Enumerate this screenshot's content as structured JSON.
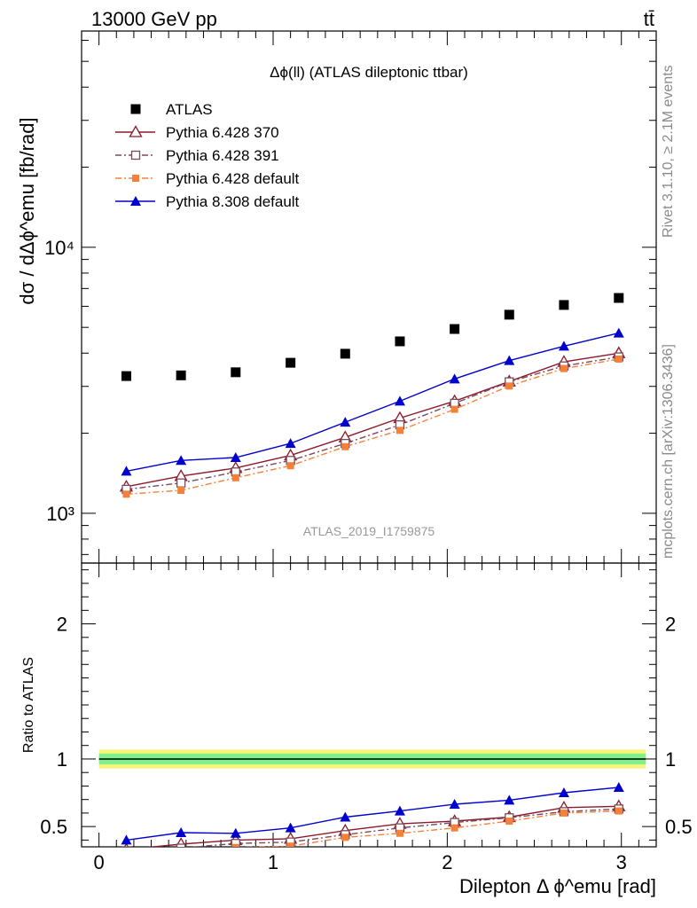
{
  "header": {
    "left": "13000 GeV pp",
    "right": "tt̄"
  },
  "side_labels": {
    "rivet": "Rivet 3.1.10, ≥ 2.1M events",
    "mcplots": "mcplots.cern.ch [arXiv:1306.3436]"
  },
  "chart_data": [
    {
      "type": "scatter",
      "title": "Δϕ(ll) (ATLAS dileptonic ttbar)",
      "watermark": "ATLAS_2019_I1759875",
      "ylabel": "dσ / dΔϕ^emu [fb/rad]",
      "yscale": "log",
      "ylim": [
        650,
        65000
      ],
      "xlim": [
        -0.1,
        3.2
      ],
      "y_ticks": [
        {
          "value": 1000,
          "label": "10³"
        },
        {
          "value": 10000,
          "label": "10⁴"
        }
      ],
      "x": [
        0.157,
        0.471,
        0.785,
        1.1,
        1.414,
        1.728,
        2.042,
        2.356,
        2.67,
        2.985
      ],
      "series": [
        {
          "name": "ATLAS",
          "marker": "square-filled",
          "color": "#000000",
          "line": "none",
          "values": [
            3280,
            3300,
            3390,
            3680,
            3980,
            4430,
            4930,
            5580,
            6070,
            6450
          ]
        },
        {
          "name": "Pythia 6.428 370",
          "marker": "triangle-open",
          "color": "#8b1a2b",
          "line": "solid",
          "values": [
            1260,
            1380,
            1480,
            1650,
            1930,
            2280,
            2640,
            3130,
            3710,
            4000
          ]
        },
        {
          "name": "Pythia 6.428 391",
          "marker": "square-open",
          "color": "#7a4a5a",
          "line": "dashdot",
          "values": [
            1230,
            1300,
            1430,
            1580,
            1830,
            2150,
            2590,
            3120,
            3580,
            3870
          ]
        },
        {
          "name": "Pythia 6.428 default",
          "marker": "square-filled",
          "color": "#f4813a",
          "line": "dashdot",
          "values": [
            1180,
            1220,
            1360,
            1510,
            1780,
            2050,
            2460,
            3010,
            3500,
            3800
          ]
        },
        {
          "name": "Pythia 8.308 default",
          "marker": "triangle-filled",
          "color": "#0000cc",
          "line": "solid",
          "values": [
            1440,
            1580,
            1620,
            1830,
            2200,
            2640,
            3200,
            3750,
            4250,
            4760
          ]
        }
      ]
    },
    {
      "type": "line",
      "ylabel": "Ratio to ATLAS",
      "xlabel": "Dilepton Δ ϕ^emu [rad]",
      "xlim": [
        -0.1,
        3.2
      ],
      "ylim": [
        0.35,
        2.45
      ],
      "x_ticks": [
        0,
        1,
        2,
        3
      ],
      "y_ticks": [
        0.5,
        1,
        2
      ],
      "band": {
        "inner_halfwidth": 0.04,
        "outer_halfwidth": 0.07,
        "inner_color": "#7ef08c",
        "outer_color": "#f6f57a"
      },
      "x": [
        0.157,
        0.471,
        0.785,
        1.1,
        1.414,
        1.728,
        2.042,
        2.356,
        2.67,
        2.985
      ],
      "series": [
        {
          "name": "Pythia 6.428 370",
          "values": [
            0.33,
            0.37,
            0.4,
            0.41,
            0.47,
            0.52,
            0.54,
            0.57,
            0.64,
            0.65
          ]
        },
        {
          "name": "Pythia 6.428 391",
          "values": [
            0.32,
            0.34,
            0.375,
            0.385,
            0.44,
            0.49,
            0.53,
            0.565,
            0.61,
            0.63
          ]
        },
        {
          "name": "Pythia 6.428 default",
          "values": [
            0.3,
            0.32,
            0.345,
            0.355,
            0.42,
            0.45,
            0.49,
            0.54,
            0.6,
            0.615
          ]
        },
        {
          "name": "Pythia 8.308 default",
          "values": [
            0.4,
            0.455,
            0.45,
            0.49,
            0.57,
            0.615,
            0.665,
            0.695,
            0.75,
            0.79
          ]
        }
      ]
    }
  ]
}
